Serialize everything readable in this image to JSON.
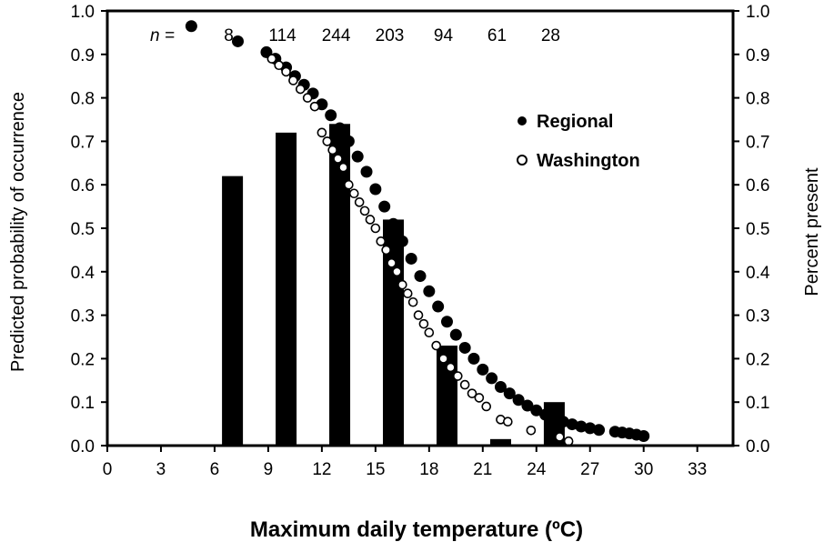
{
  "chart_data": {
    "type": "bar",
    "title": "",
    "xlabel": "Maximum daily temperature (ºC)",
    "ylabel_left": "Predicted probability of occurrence",
    "ylabel_right": "Percent present",
    "xlim": [
      0,
      35
    ],
    "ylim": [
      0,
      1.0
    ],
    "x_ticks": [
      "0",
      "3",
      "6",
      "9",
      "12",
      "15",
      "18",
      "21",
      "24",
      "27",
      "30",
      "33"
    ],
    "y_ticks": [
      "0.0",
      "0.1",
      "0.2",
      "0.3",
      "0.4",
      "0.5",
      "0.6",
      "0.7",
      "0.8",
      "0.9",
      "1.0"
    ],
    "grid": false,
    "legend_position": "upper-right",
    "n_prefix": "n =",
    "bars": {
      "x": [
        7,
        10,
        13,
        16,
        19,
        22,
        25
      ],
      "values": [
        0.62,
        0.72,
        0.74,
        0.52,
        0.23,
        0.015,
        0.1
      ],
      "n": [
        "8",
        "114",
        "244",
        "203",
        "94",
        "61",
        "28"
      ]
    },
    "series": [
      {
        "name": "Regional",
        "marker": "filled-circle",
        "x": [
          4.7,
          7.3,
          8.9,
          9.4,
          10.0,
          10.5,
          11.0,
          11.5,
          12.0,
          12.5,
          13.0,
          13.5,
          14.0,
          14.5,
          15.0,
          15.5,
          16.0,
          16.5,
          17.0,
          17.5,
          18.0,
          18.5,
          19.0,
          19.5,
          20.0,
          20.5,
          21.0,
          21.5,
          22.0,
          22.5,
          23.0,
          23.5,
          24.0,
          24.5,
          25.0,
          25.5,
          26.0,
          26.5,
          27.0,
          27.5,
          28.4,
          28.8,
          29.2,
          29.6,
          30.0
        ],
        "values": [
          0.965,
          0.93,
          0.905,
          0.89,
          0.87,
          0.85,
          0.83,
          0.81,
          0.785,
          0.76,
          0.73,
          0.7,
          0.665,
          0.63,
          0.59,
          0.55,
          0.51,
          0.47,
          0.43,
          0.39,
          0.355,
          0.32,
          0.285,
          0.255,
          0.225,
          0.2,
          0.175,
          0.155,
          0.135,
          0.12,
          0.105,
          0.092,
          0.081,
          0.071,
          0.062,
          0.055,
          0.049,
          0.044,
          0.04,
          0.036,
          0.032,
          0.03,
          0.028,
          0.025,
          0.022
        ]
      },
      {
        "name": "Washington",
        "marker": "open-circle",
        "x": [
          9.2,
          9.6,
          10.0,
          10.4,
          10.8,
          11.2,
          11.6,
          12.0,
          12.3,
          12.6,
          12.9,
          13.2,
          13.5,
          13.8,
          14.1,
          14.4,
          14.7,
          15.0,
          15.3,
          15.6,
          15.9,
          16.2,
          16.5,
          16.8,
          17.1,
          17.4,
          17.7,
          18.0,
          18.4,
          18.8,
          19.2,
          19.6,
          20.0,
          20.4,
          20.8,
          21.2,
          22.0,
          22.4,
          23.7,
          25.3,
          25.8
        ],
        "values": [
          0.89,
          0.875,
          0.86,
          0.84,
          0.82,
          0.8,
          0.78,
          0.72,
          0.7,
          0.68,
          0.66,
          0.64,
          0.6,
          0.58,
          0.56,
          0.54,
          0.52,
          0.5,
          0.47,
          0.45,
          0.42,
          0.4,
          0.37,
          0.35,
          0.33,
          0.3,
          0.28,
          0.26,
          0.23,
          0.2,
          0.18,
          0.16,
          0.14,
          0.12,
          0.11,
          0.09,
          0.06,
          0.055,
          0.035,
          0.02,
          0.01
        ]
      }
    ]
  }
}
